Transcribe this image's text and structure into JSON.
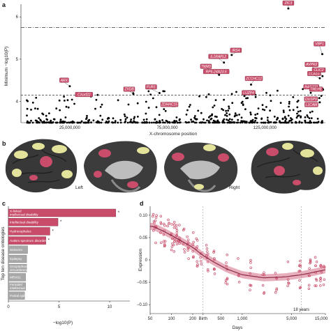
{
  "panels": {
    "a": "a",
    "b": "b",
    "c": "c",
    "d": "d"
  },
  "chart_data": [
    {
      "type": "scatter",
      "panel": "a",
      "xlabel": "X-chromosome position",
      "ylabel": "Minimum −log10(P)",
      "x_ticks": [
        "25,000,000",
        "75,000,000",
        "125,000,000"
      ],
      "y_ticks": [
        "4",
        "5",
        "6"
      ],
      "ylim": [
        3.5,
        6.3
      ],
      "thresholds": [
        {
          "style": "dashed",
          "y": 4.15
        },
        {
          "style": "dash-dot",
          "y": 5.75
        }
      ],
      "genes": [
        {
          "name": "ZIC3",
          "x": 137000000,
          "y": 6.2
        },
        {
          "name": "IRS4",
          "x": 108000000,
          "y": 5.1
        },
        {
          "name": "IL1RAPL2",
          "x": 104000000,
          "y": 4.92
        },
        {
          "name": "TNMD",
          "x": 99800000,
          "y": 4.72
        },
        {
          "name": "RP6-24A23.6",
          "x": 101500000,
          "y": 4.63
        },
        {
          "name": "ZCCHC12",
          "x": 117900000,
          "y": 4.4
        },
        {
          "name": "VBP1",
          "x": 154400000,
          "y": 5.12
        },
        {
          "name": "AVPR2",
          "x": 153200000,
          "y": 4.7
        },
        {
          "name": "LCA10",
          "x": 153100000,
          "y": 4.55
        },
        {
          "name": "CLIC2",
          "x": 154500000,
          "y": 4.6
        },
        {
          "name": "RAB39B",
          "x": 154500000,
          "y": 4.3
        },
        {
          "name": "TMLHE",
          "x": 154800000,
          "y": 4.28
        },
        {
          "name": "DUSP9",
          "x": 152900000,
          "y": 4.08
        },
        {
          "name": "L1CAM",
          "x": 153100000,
          "y": 3.98
        },
        {
          "name": "ARX",
          "x": 25000000,
          "y": 4.36
        },
        {
          "name": "CXorf22",
          "x": 35900000,
          "y": 4.12
        },
        {
          "name": "ZXDB",
          "x": 57600000,
          "y": 4.18
        },
        {
          "name": "FUR1",
          "x": 71000000,
          "y": 4.2
        },
        {
          "name": "ZDHHC15",
          "x": 74600000,
          "y": 3.95
        },
        {
          "name": "LUZP4",
          "x": 114500000,
          "y": 4.13
        }
      ]
    },
    {
      "type": "bar",
      "panel": "c",
      "ylabel": "Top ten disease ontologies",
      "xlabel": "−log10(P)",
      "x_ticks": [
        "0",
        "5",
        "10"
      ],
      "xlim": [
        0,
        12
      ],
      "categories": [
        "X-linked intellectual disability",
        "Intellectual disability",
        "Hydrocephalus",
        "Autism spectrum disorder",
        "Seizures",
        "Epilepsy",
        "Occipitofrontal circumference of brain",
        "MRXS1",
        "Females' intellectual disability",
        "Partial epilepsy"
      ],
      "values": [
        10.6,
        4.9,
        4.1,
        3.7,
        1.9,
        1.8,
        1.8,
        1.7,
        1.7,
        1.6
      ],
      "significant": [
        true,
        true,
        true,
        true,
        false,
        false,
        false,
        false,
        false,
        false
      ],
      "colors": {
        "significant": "#c94d6a",
        "other": "#a8a8a8"
      }
    },
    {
      "type": "scatter",
      "panel": "d",
      "xlabel": "Days",
      "ylabel": "Expression",
      "x_ticks": [
        "50",
        "100",
        "200",
        "Birth",
        "500",
        "1,000",
        "5,000",
        "15,000"
      ],
      "marker_lines": [
        "Birth",
        "18 years"
      ],
      "y_ticks": [
        "−0.10",
        "−0.05",
        "0",
        "0.05",
        "0.10"
      ],
      "ylim": [
        -0.12,
        0.12
      ],
      "fit": [
        {
          "days": 55,
          "expression": 0.075
        },
        {
          "days": 80,
          "expression": 0.063
        },
        {
          "days": 120,
          "expression": 0.048
        },
        {
          "days": 200,
          "expression": 0.028
        },
        {
          "days": 280,
          "expression": 0.01
        },
        {
          "days": 400,
          "expression": -0.005
        },
        {
          "days": 600,
          "expression": -0.02
        },
        {
          "days": 1000,
          "expression": -0.033
        },
        {
          "days": 2000,
          "expression": -0.04
        },
        {
          "days": 4000,
          "expression": -0.038
        },
        {
          "days": 7000,
          "expression": -0.033
        },
        {
          "days": 10000,
          "expression": -0.028
        },
        {
          "days": 15000,
          "expression": -0.022
        }
      ],
      "marker_color": "#c94d6a"
    }
  ],
  "brain": {
    "left_label": "Left",
    "right_label": "Right"
  }
}
